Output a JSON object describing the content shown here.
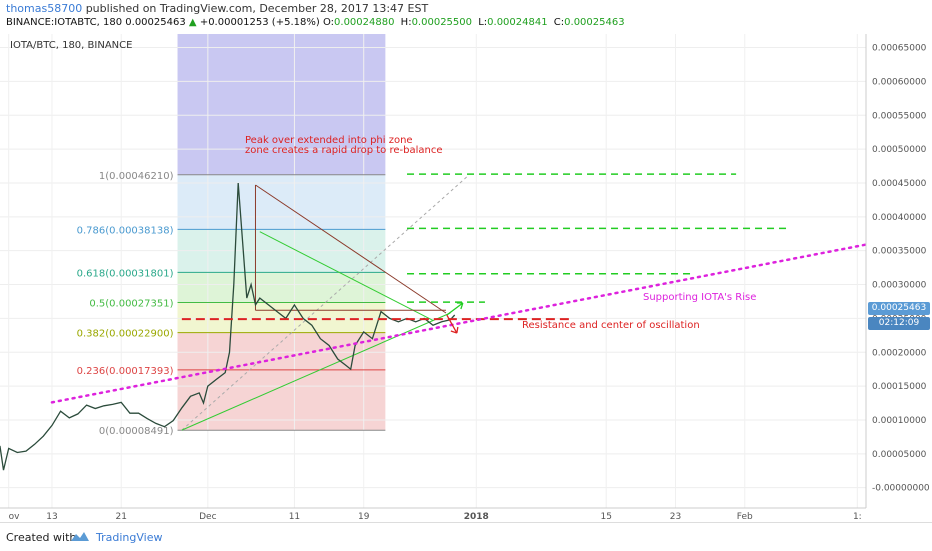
{
  "header": {
    "username": "thomas58700",
    "published_text": "published on TradingView.com, December 28, 2017 13:47 EST",
    "symbol": "BINANCE:IOTABTC, 180",
    "last": "0.00025463",
    "change": "+0.00001253 (+5.18%)",
    "o_label": "O:",
    "o_value": "0.00024880",
    "h_label": "H:",
    "h_value": "0.00025500",
    "l_label": "L:",
    "l_value": "0.00024841",
    "c_label": "C:",
    "c_value": "0.00025463",
    "up_arrow": "▲"
  },
  "chart_tagline": "IOTA/BTC, 180, BINANCE",
  "price_tag": {
    "value": "0.00025463",
    "countdown": "02:12:09"
  },
  "footer": {
    "created_with": "Created with",
    "brand": "TradingView"
  },
  "colors": {
    "magenta": "#dd22dd",
    "red": "#dd2222",
    "green_dash": "#22cc22",
    "trend_green": "#33cc33",
    "triangle_brown": "#8b3a2a",
    "candle": "#2b4b3b",
    "band_purple": "#c9c8f2",
    "accent_blue": "#5b9bd5"
  },
  "chart_data": {
    "type": "line",
    "y_axis": {
      "ticks": [
        "0.00065000",
        "0.00060000",
        "0.00055000",
        "0.00050000",
        "0.00045000",
        "0.00040000",
        "0.00035000",
        "0.00030000",
        "0.00025000",
        "0.00020000",
        "0.00015000",
        "0.00010000",
        "0.00005000",
        "-0.00000000"
      ],
      "tick_values": [
        0.00065,
        0.0006,
        0.00055,
        0.0005,
        0.00045,
        0.0004,
        0.00035,
        0.0003,
        0.00025,
        0.0002,
        0.00015,
        0.0001,
        5e-05,
        0
      ],
      "range": [
        -3e-05,
        0.00067
      ]
    },
    "x_axis": {
      "ticks": [
        "ov",
        "13",
        "21",
        "Dec",
        "11",
        "19",
        "2018",
        "15",
        "23",
        "Feb",
        "1:"
      ],
      "tick_days": [
        -23,
        -18,
        -10,
        0,
        10,
        18,
        31,
        46,
        54,
        62,
        75
      ],
      "range_days": [
        -24,
        76
      ]
    },
    "fib_levels": [
      {
        "label": "1(0.00046210)",
        "ratio": 1,
        "value": 0.0004621,
        "color": "#888888",
        "fill": "#e6e6e6"
      },
      {
        "label": "0.786(0.00038138)",
        "ratio": 0.786,
        "value": 0.00038138,
        "color": "#4a9ad0",
        "fill": "#d6e8f7"
      },
      {
        "label": "0.618(0.00031801)",
        "ratio": 0.618,
        "value": 0.00031801,
        "color": "#2aa88a",
        "fill": "#d4f0e8"
      },
      {
        "label": "0.5(0.00027351)",
        "ratio": 0.5,
        "value": 0.00027351,
        "color": "#44bb44",
        "fill": "#d8f2d0"
      },
      {
        "label": "0.382(0.00022900)",
        "ratio": 0.382,
        "value": 0.000229,
        "color": "#9aa800",
        "fill": "#eef5c8"
      },
      {
        "label": "0.236(0.00017393)",
        "ratio": 0.236,
        "value": 0.00017393,
        "color": "#dd4444",
        "fill": "#f5cccc"
      },
      {
        "label": "0(0.00008491)",
        "ratio": 0,
        "value": 8.491e-05,
        "color": "#888888",
        "fill": "#f5cccc"
      }
    ],
    "fib_range_days": [
      -3.5,
      20.5
    ],
    "series": [
      {
        "x_days": [
          -25,
          -24,
          -23.6,
          -23,
          -22,
          -21,
          -20,
          -19,
          -18,
          -17,
          -16,
          -15,
          -14,
          -13,
          -12,
          -11,
          -10,
          -9,
          -8,
          -7,
          -6,
          -5,
          -4,
          -3,
          -2,
          -1,
          -0.5,
          0,
          1,
          2,
          2.5,
          3,
          3.5,
          4,
          4.5,
          5,
          5.5,
          6,
          7,
          8,
          9,
          10,
          11,
          12,
          13,
          14,
          15,
          16,
          16.5,
          17,
          18,
          19,
          20,
          21,
          22,
          23,
          24,
          25,
          26,
          27,
          28,
          28.5
        ],
        "close": [
          6.6e-05,
          6.1e-05,
          2.6e-05,
          5.8e-05,
          5.2e-05,
          5.4e-05,
          6.4e-05,
          7.6e-05,
          9.2e-05,
          0.000113,
          0.000103,
          0.000109,
          0.000122,
          0.000117,
          0.000121,
          0.000123,
          0.000126,
          0.00011,
          0.00011,
          0.000102,
          9.5e-05,
          9e-05,
          9.9e-05,
          0.000118,
          0.000135,
          0.00014,
          0.000125,
          0.00015,
          0.00016,
          0.00017,
          0.0002,
          0.0003,
          0.00045,
          0.000365,
          0.00028,
          0.0003,
          0.00027,
          0.00028,
          0.00027,
          0.00026,
          0.00025,
          0.00027,
          0.00025,
          0.00024,
          0.00022,
          0.00021,
          0.00019,
          0.00018,
          0.000175,
          0.00021,
          0.00023,
          0.00022,
          0.00026,
          0.00025,
          0.000245,
          0.00025,
          0.000245,
          0.00025,
          0.00024,
          0.000245,
          0.000248,
          0.000255
        ]
      }
    ],
    "annotations": [
      {
        "text": "Peak over extended into phi zone",
        "color": "#dd2222"
      },
      {
        "text": "zone creates a rapid drop to re-balance",
        "color": "#dd2222"
      },
      {
        "text": "Supporting IOTA's Rise",
        "color": "#dd22dd"
      },
      {
        "text": "Resistance and center of oscillation",
        "color": "#dd2222"
      }
    ],
    "drawings": {
      "supporting_dotted": {
        "from": [
          -18,
          0.000126
        ],
        "to": [
          76,
          0.000359
        ],
        "color": "#dd22dd"
      },
      "resistance_dashed": {
        "from": [
          -3,
          0.000249
        ],
        "to": [
          42,
          0.000249
        ],
        "color": "#dd2222"
      },
      "green_projections": [
        {
          "from": [
            23,
            0.000463
          ],
          "to": [
            61,
            0.000463
          ]
        },
        {
          "from": [
            23,
            0.000383
          ],
          "to": [
            67,
            0.000383
          ]
        },
        {
          "from": [
            23,
            0.000316
          ],
          "to": [
            56,
            0.000316
          ]
        },
        {
          "from": [
            23,
            0.000274
          ],
          "to": [
            32,
            0.000274
          ]
        }
      ],
      "triangle_upper": {
        "from": [
          5.5,
          0.000447
        ],
        "to": [
          27.5,
          0.000258
        ]
      },
      "triangle_lower": {
        "from": [
          5.5,
          0.000262
        ],
        "to": [
          27.5,
          0.000262
        ]
      },
      "triangle_top_left": {
        "from": [
          5.5,
          0.000447
        ],
        "to": [
          5.5,
          0.000262
        ]
      },
      "green_trend": {
        "from": [
          -3,
          8.5e-05
        ],
        "to": [
          28,
          0.000258
        ]
      },
      "inner_trend": {
        "from": [
          6,
          0.000378
        ],
        "to": [
          26,
          0.000247
        ]
      },
      "diag_dashed": {
        "from": [
          -3,
          8.5e-05
        ],
        "to": [
          30,
          0.00046
        ]
      }
    }
  }
}
